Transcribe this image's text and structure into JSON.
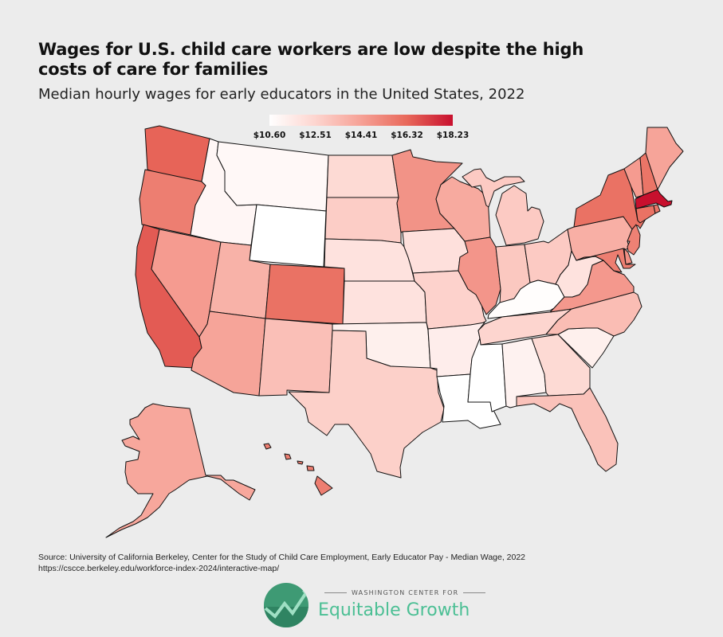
{
  "header": {
    "title": "Wages for U.S. child care workers are low despite the high costs of care for families",
    "subtitle": "Median hourly wages for early educators in the United States, 2022"
  },
  "legend": {
    "labels": [
      "$10.60",
      "$12.51",
      "$14.41",
      "$16.32",
      "$18.23"
    ],
    "min": 10.6,
    "max": 18.23,
    "colors": [
      "#ffffff",
      "#fdd5cf",
      "#f6a196",
      "#e8685a",
      "#c8102e"
    ]
  },
  "map_data": {
    "type": "choropleth",
    "value_unit": "USD per hour (median, estimated from fill)",
    "states": {
      "WA": 16.4,
      "OR": 15.6,
      "CA": 16.6,
      "NV": 14.6,
      "ID": 11.0,
      "MT": 10.9,
      "WY": 10.6,
      "UT": 13.8,
      "CO": 16.0,
      "AZ": 14.3,
      "NM": 13.3,
      "ND": 12.3,
      "SD": 12.8,
      "NE": 11.9,
      "KS": 11.9,
      "OK": 11.3,
      "TX": 12.7,
      "MN": 14.9,
      "IA": 12.0,
      "MO": 12.6,
      "AR": 11.4,
      "LA": 10.6,
      "WI": 14.1,
      "IL": 14.8,
      "MI": 12.9,
      "IN": 13.0,
      "OH": 12.9,
      "KY": 10.7,
      "TN": 12.5,
      "MS": 10.6,
      "AL": 11.2,
      "GA": 12.3,
      "FL": 13.2,
      "SC": 11.3,
      "NC": 13.4,
      "VA": 14.7,
      "WV": 11.9,
      "PA": 13.9,
      "NY": 16.0,
      "VT": 14.6,
      "NH": 15.9,
      "ME": 14.3,
      "MA": 18.23,
      "CT": 16.0,
      "RI": 15.9,
      "NJ": 15.5,
      "DE": 15.0,
      "MD": 15.6,
      "AK": 14.2,
      "HI": 15.6
    }
  },
  "footer": {
    "source": "Source: University of California Berkeley, Center for the Study of Child Care Employment, Early Educator Pay - Median Wage, 2022",
    "url": "https://cscce.berkeley.edu/workforce-index-2024/interactive-map/",
    "logo_org": "WASHINGTON CENTER FOR",
    "logo_name": "Equitable Growth"
  }
}
